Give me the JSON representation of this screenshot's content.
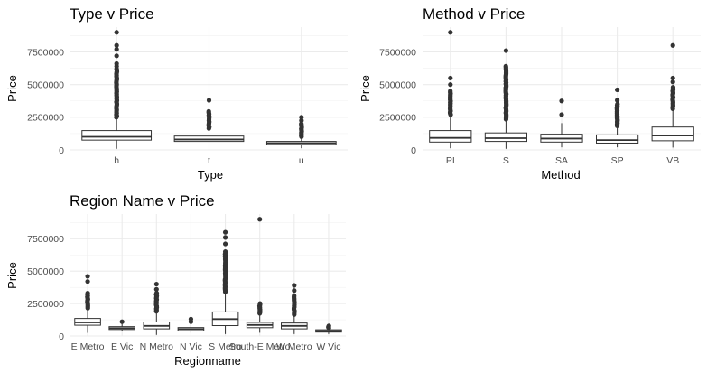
{
  "chart_data": [
    {
      "type": "box",
      "title": "Type v Price",
      "xlabel": "Type",
      "ylabel": "Price",
      "ylim": [
        0,
        9400000
      ],
      "yticks": [
        0,
        2500000,
        5000000,
        7500000
      ],
      "ytick_labels": [
        "0",
        "2500000",
        "5000000",
        "7500000"
      ],
      "grid": true,
      "categories": [
        "h",
        "t",
        "u"
      ],
      "boxes": [
        {
          "category": "h",
          "whisker_low": 85000,
          "q1": 750000,
          "median": 1000000,
          "q3": 1480000,
          "whisker_high": 2480000,
          "outlier_range": [
            2500000,
            6200000
          ],
          "outliers": [
            6400000,
            6600000,
            7200000,
            7700000,
            8000000,
            9000000
          ]
        },
        {
          "category": "t",
          "whisker_low": 200000,
          "q1": 650000,
          "median": 800000,
          "q3": 1060000,
          "whisker_high": 1620000,
          "outlier_range": [
            1650000,
            2950000
          ],
          "outliers": [
            3800000
          ]
        },
        {
          "category": "u",
          "whisker_low": 130000,
          "q1": 400000,
          "median": 520000,
          "q3": 650000,
          "whisker_high": 1000000,
          "outlier_range": [
            1020000,
            2000000
          ],
          "outliers": [
            2250000,
            2500000
          ]
        }
      ]
    },
    {
      "type": "box",
      "title": "Method v Price",
      "xlabel": "Method",
      "ylabel": "Price",
      "ylim": [
        0,
        9400000
      ],
      "yticks": [
        0,
        2500000,
        5000000,
        7500000
      ],
      "ytick_labels": [
        "0",
        "2500000",
        "5000000",
        "7500000"
      ],
      "grid": true,
      "categories": [
        "PI",
        "S",
        "SA",
        "SP",
        "VB"
      ],
      "boxes": [
        {
          "category": "PI",
          "whisker_low": 130000,
          "q1": 600000,
          "median": 920000,
          "q3": 1480000,
          "whisker_high": 2650000,
          "outlier_range": [
            2700000,
            4500000
          ],
          "outliers": [
            5000000,
            5500000,
            9000000
          ]
        },
        {
          "category": "S",
          "whisker_low": 85000,
          "q1": 650000,
          "median": 900000,
          "q3": 1300000,
          "whisker_high": 2300000,
          "outlier_range": [
            2350000,
            6400000
          ],
          "outliers": [
            7600000
          ]
        },
        {
          "category": "SA",
          "whisker_low": 200000,
          "q1": 600000,
          "median": 870000,
          "q3": 1200000,
          "whisker_high": 2050000,
          "outlier_range": [],
          "outliers": [
            2700000,
            3750000
          ]
        },
        {
          "category": "SP",
          "whisker_low": 200000,
          "q1": 520000,
          "median": 750000,
          "q3": 1150000,
          "whisker_high": 1800000,
          "outlier_range": [
            1850000,
            3500000
          ],
          "outliers": [
            3800000,
            4600000
          ]
        },
        {
          "category": "VB",
          "whisker_low": 180000,
          "q1": 700000,
          "median": 1100000,
          "q3": 1750000,
          "whisker_high": 3100000,
          "outlier_range": [
            3150000,
            4800000
          ],
          "outliers": [
            5200000,
            5500000,
            8000000
          ]
        }
      ]
    },
    {
      "type": "box",
      "title": "Region Name v Price",
      "xlabel": "Regionname",
      "ylabel": "Price",
      "ylim": [
        0,
        9400000
      ],
      "yticks": [
        0,
        2500000,
        5000000,
        7500000
      ],
      "ytick_labels": [
        "0",
        "2500000",
        "5000000",
        "7500000"
      ],
      "grid": true,
      "categories": [
        "E Metro",
        "E Vic",
        "N Metro",
        "N Vic",
        "S Metro",
        "South-E Metro",
        "W Metro",
        "W Vic"
      ],
      "boxes": [
        {
          "category": "E Metro",
          "whisker_low": 240000,
          "q1": 830000,
          "median": 1050000,
          "q3": 1350000,
          "whisker_high": 2100000,
          "outlier_range": [
            2150000,
            3300000
          ],
          "outliers": [
            4200000,
            4600000
          ]
        },
        {
          "category": "E Vic",
          "whisker_low": 350000,
          "q1": 500000,
          "median": 600000,
          "q3": 720000,
          "whisker_high": 950000,
          "outlier_range": [],
          "outliers": [
            1100000
          ]
        },
        {
          "category": "N Metro",
          "whisker_low": 85000,
          "q1": 550000,
          "median": 780000,
          "q3": 1080000,
          "whisker_high": 1850000,
          "outlier_range": [
            1900000,
            3300000
          ],
          "outliers": [
            3600000,
            4000000
          ]
        },
        {
          "category": "N Vic",
          "whisker_low": 250000,
          "q1": 400000,
          "median": 530000,
          "q3": 650000,
          "whisker_high": 950000,
          "outlier_range": [],
          "outliers": [
            1100000,
            1300000
          ]
        },
        {
          "category": "S Metro",
          "whisker_low": 150000,
          "q1": 800000,
          "median": 1300000,
          "q3": 1850000,
          "whisker_high": 3350000,
          "outlier_range": [
            3400000,
            6500000
          ],
          "outliers": [
            7100000,
            7600000,
            8000000
          ]
        },
        {
          "category": "South-E Metro",
          "whisker_low": 250000,
          "q1": 640000,
          "median": 850000,
          "q3": 1050000,
          "whisker_high": 1700000,
          "outlier_range": [
            1750000,
            2500000
          ],
          "outliers": [
            9000000
          ]
        },
        {
          "category": "W Metro",
          "whisker_low": 150000,
          "q1": 550000,
          "median": 780000,
          "q3": 1000000,
          "whisker_high": 1600000,
          "outlier_range": [
            1650000,
            3100000
          ],
          "outliers": [
            3500000,
            3900000
          ]
        },
        {
          "category": "W Vic",
          "whisker_low": 150000,
          "q1": 300000,
          "median": 380000,
          "q3": 480000,
          "whisker_high": 600000,
          "outlier_range": [
            620000,
            780000
          ],
          "outliers": []
        }
      ]
    }
  ]
}
